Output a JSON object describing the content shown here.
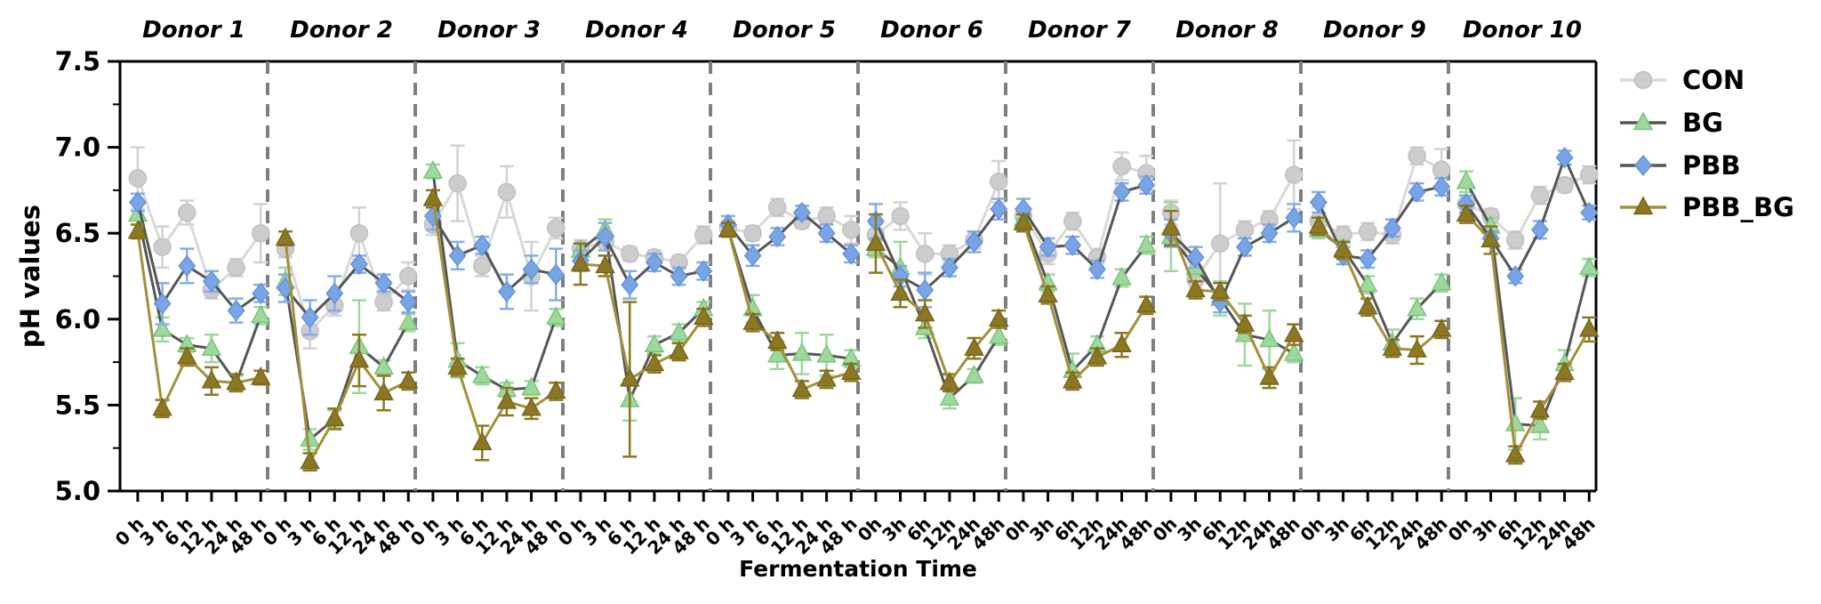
{
  "chart_data": {
    "type": "line",
    "title": "",
    "xlabel": "Fermentation Time",
    "ylabel": "pH values",
    "ylim": [
      5.0,
      7.5
    ],
    "y_tick_labels": [
      "7.5",
      "7.0",
      "6.5",
      "6.0",
      "5.5",
      "5.0"
    ],
    "y_tick_values": [
      7.5,
      7.0,
      6.5,
      6.0,
      5.5,
      5.0
    ],
    "y_minor_tick_step": 0.25,
    "grid": false,
    "legend_position": "right-outside",
    "panel_separator_color": "#7f7f7f",
    "donors": [
      {
        "label": "Donor 1",
        "x_tick_labels": [
          "0 h",
          "3 h",
          "6 h",
          "12 h",
          "24 h",
          "48 h"
        ]
      },
      {
        "label": "Donor 2",
        "x_tick_labels": [
          "0 h",
          "3 h",
          "6 h",
          "12 h",
          "24 h",
          "48 h"
        ]
      },
      {
        "label": "Donor 3",
        "x_tick_labels": [
          "0 h",
          "3 h",
          "6 h",
          "12 h",
          "24 h",
          "48 h"
        ]
      },
      {
        "label": "Donor 4",
        "x_tick_labels": [
          "0 h",
          "3 h",
          "6 h",
          "12 h",
          "24 h",
          "48 h"
        ]
      },
      {
        "label": "Donor 5",
        "x_tick_labels": [
          "0 h",
          "3 h",
          "6 h",
          "12 h",
          "24 h",
          "48 h"
        ]
      },
      {
        "label": "Donor 6",
        "x_tick_labels": [
          "0h",
          "3h",
          "6h",
          "12h",
          "24h",
          "48h"
        ]
      },
      {
        "label": "Donor 7",
        "x_tick_labels": [
          "0h",
          "3h",
          "6h",
          "12h",
          "24h",
          "48h"
        ]
      },
      {
        "label": "Donor 8",
        "x_tick_labels": [
          "0h",
          "3h",
          "6h",
          "12h",
          "24h",
          "48h"
        ]
      },
      {
        "label": "Donor 9",
        "x_tick_labels": [
          "0h",
          "3h",
          "6h",
          "12h",
          "24h",
          "48h"
        ]
      },
      {
        "label": "Donor 10",
        "x_tick_labels": [
          "0h",
          "3h",
          "6h",
          "12h",
          "24h",
          "48h"
        ]
      }
    ],
    "series": [
      {
        "name": "CON",
        "marker": "circle",
        "marker_color": "#cdcdcd",
        "marker_edge": "#c0c0c0",
        "line_color": "#d9d9d9",
        "error_color": "#d2d2d2",
        "values": [
          [
            6.82,
            6.42,
            6.62,
            6.17,
            6.3,
            6.5
          ],
          [
            6.41,
            5.93,
            6.08,
            6.5,
            6.1,
            6.25
          ],
          [
            6.55,
            6.79,
            6.31,
            6.74,
            6.25,
            6.53
          ],
          [
            6.41,
            6.45,
            6.38,
            6.36,
            6.33,
            6.49
          ],
          [
            6.53,
            6.5,
            6.65,
            6.57,
            6.6,
            6.52
          ],
          [
            6.49,
            6.6,
            6.38,
            6.38,
            6.46,
            6.8
          ],
          [
            6.6,
            6.38,
            6.57,
            6.36,
            6.89,
            6.85
          ],
          [
            6.62,
            6.23,
            6.44,
            6.52,
            6.58,
            6.84
          ],
          [
            6.57,
            6.49,
            6.51,
            6.49,
            6.95,
            6.87
          ],
          [
            6.67,
            6.6,
            6.46,
            6.72,
            6.78,
            6.84
          ]
        ],
        "errors": [
          [
            0.18,
            0.12,
            0.07,
            0.05,
            0.05,
            0.17
          ],
          [
            0.05,
            0.1,
            0.06,
            0.15,
            0.05,
            0.08
          ],
          [
            0.06,
            0.22,
            0.06,
            0.15,
            0.2,
            0.06
          ],
          [
            0.05,
            0.05,
            0.04,
            0.04,
            0.04,
            0.05
          ],
          [
            0.04,
            0.04,
            0.05,
            0.04,
            0.05,
            0.08
          ],
          [
            0.06,
            0.08,
            0.12,
            0.05,
            0.05,
            0.12
          ],
          [
            0.05,
            0.06,
            0.05,
            0.05,
            0.08,
            0.1
          ],
          [
            0.07,
            0.05,
            0.35,
            0.05,
            0.05,
            0.2
          ],
          [
            0.08,
            0.05,
            0.05,
            0.05,
            0.05,
            0.12
          ],
          [
            0.07,
            0.04,
            0.05,
            0.05,
            0.04,
            0.05
          ]
        ]
      },
      {
        "name": "BG",
        "marker": "triangle",
        "marker_color": "#9ed89e",
        "marker_edge": "#7cc47c",
        "line_color": "#565656",
        "error_color": "#9ed89e",
        "values": [
          [
            6.61,
            5.94,
            5.85,
            5.83,
            5.63,
            6.02
          ],
          [
            6.22,
            5.3,
            5.42,
            5.84,
            5.72,
            5.98
          ],
          [
            6.86,
            5.76,
            5.67,
            5.59,
            5.6,
            6.01
          ],
          [
            6.4,
            6.52,
            5.53,
            5.85,
            5.92,
            6.06
          ],
          [
            6.52,
            6.06,
            5.79,
            5.8,
            5.79,
            5.77
          ],
          [
            6.41,
            6.3,
            5.95,
            5.54,
            5.67,
            5.9
          ],
          [
            6.58,
            6.21,
            5.7,
            5.85,
            6.24,
            6.43
          ],
          [
            6.48,
            6.3,
            6.12,
            5.91,
            5.88,
            5.8
          ],
          [
            6.52,
            6.41,
            6.2,
            5.86,
            6.06,
            6.21
          ],
          [
            6.8,
            6.54,
            5.39,
            5.38,
            5.74,
            6.3
          ]
        ],
        "errors": [
          [
            0.06,
            0.07,
            0.04,
            0.08,
            0.04,
            0.05
          ],
          [
            0.08,
            0.06,
            0.05,
            0.27,
            0.04,
            0.05
          ],
          [
            0.04,
            0.1,
            0.05,
            0.04,
            0.04,
            0.05
          ],
          [
            0.04,
            0.06,
            0.12,
            0.05,
            0.05,
            0.04
          ],
          [
            0.04,
            0.08,
            0.08,
            0.12,
            0.12,
            0.05
          ],
          [
            0.05,
            0.15,
            0.06,
            0.06,
            0.04,
            0.05
          ],
          [
            0.04,
            0.05,
            0.1,
            0.05,
            0.05,
            0.05
          ],
          [
            0.2,
            0.05,
            0.1,
            0.18,
            0.17,
            0.05
          ],
          [
            0.05,
            0.05,
            0.05,
            0.08,
            0.06,
            0.05
          ],
          [
            0.06,
            0.05,
            0.15,
            0.08,
            0.08,
            0.05
          ]
        ]
      },
      {
        "name": "PBB",
        "marker": "diamond",
        "marker_color": "#79a4e6",
        "marker_edge": "#6694da",
        "line_color": "#565656",
        "error_color": "#85aee8",
        "values": [
          [
            6.68,
            6.09,
            6.31,
            6.22,
            6.05,
            6.15
          ],
          [
            6.18,
            6.01,
            6.15,
            6.32,
            6.21,
            6.1
          ],
          [
            6.6,
            6.37,
            6.43,
            6.16,
            6.29,
            6.26
          ],
          [
            6.34,
            6.48,
            6.2,
            6.33,
            6.25,
            6.28
          ],
          [
            6.55,
            6.37,
            6.48,
            6.62,
            6.5,
            6.38
          ],
          [
            6.57,
            6.25,
            6.17,
            6.3,
            6.45,
            6.64
          ],
          [
            6.64,
            6.42,
            6.43,
            6.29,
            6.74,
            6.78
          ],
          [
            6.5,
            6.36,
            6.1,
            6.42,
            6.5,
            6.59
          ],
          [
            6.68,
            6.37,
            6.35,
            6.53,
            6.74,
            6.77
          ],
          [
            6.67,
            6.47,
            6.25,
            6.52,
            6.94,
            6.62
          ]
        ],
        "errors": [
          [
            0.05,
            0.12,
            0.1,
            0.06,
            0.07,
            0.05
          ],
          [
            0.08,
            0.1,
            0.1,
            0.05,
            0.05,
            0.06
          ],
          [
            0.08,
            0.08,
            0.05,
            0.1,
            0.08,
            0.15
          ],
          [
            0.06,
            0.08,
            0.08,
            0.05,
            0.05,
            0.05
          ],
          [
            0.05,
            0.06,
            0.05,
            0.04,
            0.05,
            0.05
          ],
          [
            0.1,
            0.06,
            0.1,
            0.05,
            0.06,
            0.06
          ],
          [
            0.06,
            0.05,
            0.05,
            0.05,
            0.05,
            0.05
          ],
          [
            0.08,
            0.06,
            0.06,
            0.05,
            0.05,
            0.08
          ],
          [
            0.06,
            0.05,
            0.05,
            0.05,
            0.05,
            0.05
          ],
          [
            0.05,
            0.04,
            0.04,
            0.05,
            0.04,
            0.04
          ]
        ]
      },
      {
        "name": "PBB_BG",
        "marker": "triangle",
        "marker_color": "#8c7823",
        "marker_edge": "#77661d",
        "line_color": "#a3903c",
        "error_color": "#8c7823",
        "values": [
          [
            6.51,
            5.48,
            5.78,
            5.64,
            5.63,
            5.66
          ],
          [
            6.47,
            5.17,
            5.42,
            5.76,
            5.57,
            5.64
          ],
          [
            6.7,
            5.72,
            5.28,
            5.52,
            5.48,
            5.58
          ],
          [
            6.32,
            6.31,
            5.65,
            5.74,
            5.81,
            6.01
          ],
          [
            6.52,
            5.98,
            5.87,
            5.59,
            5.65,
            5.69
          ],
          [
            6.44,
            6.15,
            6.03,
            5.63,
            5.83,
            6.0
          ],
          [
            6.56,
            6.14,
            5.64,
            5.78,
            5.85,
            6.08
          ],
          [
            6.53,
            6.17,
            6.16,
            5.97,
            5.66,
            5.91
          ],
          [
            6.54,
            6.4,
            6.07,
            5.83,
            5.82,
            5.94
          ],
          [
            6.61,
            6.46,
            5.21,
            5.47,
            5.69,
            5.94
          ]
        ],
        "errors": [
          [
            0.04,
            0.05,
            0.05,
            0.08,
            0.05,
            0.04
          ],
          [
            0.04,
            0.05,
            0.06,
            0.15,
            0.1,
            0.05
          ],
          [
            0.05,
            0.05,
            0.1,
            0.08,
            0.06,
            0.05
          ],
          [
            0.12,
            0.06,
            0.45,
            0.05,
            0.05,
            0.05
          ],
          [
            0.04,
            0.05,
            0.05,
            0.05,
            0.05,
            0.05
          ],
          [
            0.17,
            0.08,
            0.08,
            0.05,
            0.06,
            0.05
          ],
          [
            0.05,
            0.05,
            0.05,
            0.05,
            0.07,
            0.05
          ],
          [
            0.1,
            0.05,
            0.05,
            0.05,
            0.06,
            0.06
          ],
          [
            0.05,
            0.05,
            0.05,
            0.05,
            0.08,
            0.05
          ],
          [
            0.05,
            0.08,
            0.05,
            0.05,
            0.05,
            0.07
          ]
        ]
      }
    ]
  }
}
